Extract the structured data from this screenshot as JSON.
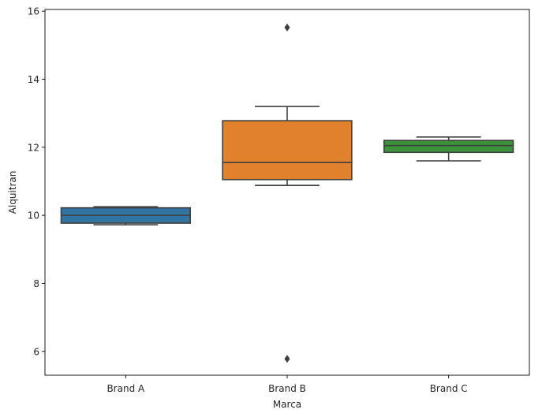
{
  "chart_data": {
    "type": "box",
    "title": "",
    "xlabel": "Marca",
    "ylabel": "Alquitran",
    "ylim": [
      5.3,
      16.05
    ],
    "yticks": [
      6,
      8,
      10,
      12,
      14,
      16
    ],
    "ytick_labels": [
      "6",
      "8",
      "10",
      "12",
      "14",
      "16"
    ],
    "categories": [
      "Brand A",
      "Brand B",
      "Brand C"
    ],
    "grid": false,
    "boxes": [
      {
        "category": "Brand A",
        "color": "#3274a1",
        "whisker_low": 9.72,
        "q1": 9.77,
        "median": 10.0,
        "q3": 10.22,
        "whisker_high": 10.25,
        "outliers": []
      },
      {
        "category": "Brand B",
        "color": "#e1812c",
        "whisker_low": 10.88,
        "q1": 11.05,
        "median": 11.55,
        "q3": 12.78,
        "whisker_high": 13.2,
        "outliers": [
          15.52,
          5.78
        ]
      },
      {
        "category": "Brand C",
        "color": "#3a923a",
        "whisker_low": 11.6,
        "q1": 11.85,
        "median": 12.05,
        "q3": 12.2,
        "whisker_high": 12.3,
        "outliers": []
      }
    ],
    "edge_color": "#3f3f3f"
  }
}
